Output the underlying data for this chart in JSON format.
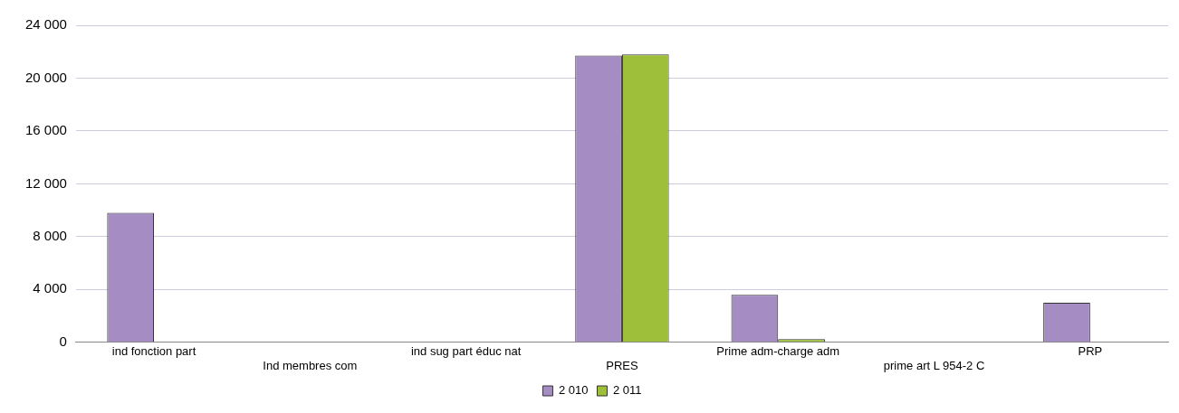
{
  "chart_data": {
    "type": "bar",
    "categories": [
      "ind fonction part",
      "Ind membres com",
      "ind sug part éduc nat",
      "PRES",
      "Prime adm-charge adm",
      "prime art L 954-2 C",
      "PRP"
    ],
    "series": [
      {
        "name": "2 010",
        "color": "#a58cc3",
        "values": [
          9800,
          null,
          null,
          21700,
          3600,
          null,
          3000
        ]
      },
      {
        "name": "2 011",
        "color": "#9dbf3a",
        "values": [
          null,
          null,
          null,
          21800,
          250,
          null,
          null
        ]
      }
    ],
    "ylim": [
      0,
      24000
    ],
    "yticks": [
      {
        "value": 0,
        "label": "0"
      },
      {
        "value": 4000,
        "label": "4 000"
      },
      {
        "value": 8000,
        "label": "8 000"
      },
      {
        "value": 12000,
        "label": "12 000"
      },
      {
        "value": 16000,
        "label": "16 000"
      },
      {
        "value": 20000,
        "label": "20 000"
      },
      {
        "value": 24000,
        "label": "24 000"
      }
    ],
    "grid": "y",
    "legend": "bottom"
  }
}
